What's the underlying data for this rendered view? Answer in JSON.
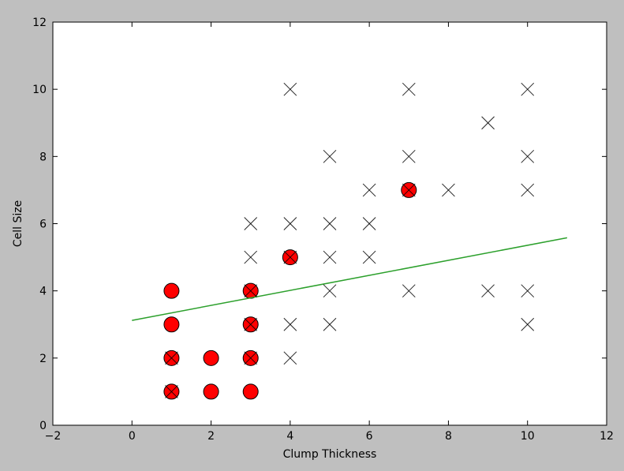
{
  "chart_data": {
    "type": "scatter",
    "title": "",
    "xlabel": "Clump Thickness",
    "ylabel": "Cell Size",
    "xlim": [
      -2,
      12
    ],
    "ylim": [
      0,
      12
    ],
    "xticks": [
      -2,
      0,
      2,
      4,
      6,
      8,
      10,
      12
    ],
    "yticks": [
      0,
      2,
      4,
      6,
      8,
      10,
      12
    ],
    "grid": false,
    "colors": {
      "figure_background": "#bfbfbf",
      "plot_background": "#ffffff",
      "benign_fill": "#ff0000",
      "malignant_marker": "#000000",
      "fit_line": "#2ca02c"
    },
    "series": [
      {
        "marker": "circle",
        "points": [
          [
            1,
            1
          ],
          [
            2,
            1
          ],
          [
            3,
            1
          ],
          [
            1,
            2
          ],
          [
            2,
            2
          ],
          [
            3,
            2
          ],
          [
            1,
            3
          ],
          [
            3,
            3
          ],
          [
            1,
            4
          ],
          [
            3,
            4
          ],
          [
            4,
            5
          ],
          [
            7,
            7
          ]
        ]
      },
      {
        "marker": "x",
        "points": [
          [
            1,
            1
          ],
          [
            1,
            2
          ],
          [
            3,
            2
          ],
          [
            4,
            2
          ],
          [
            3,
            3
          ],
          [
            4,
            3
          ],
          [
            5,
            3
          ],
          [
            10,
            3
          ],
          [
            3,
            4
          ],
          [
            5,
            4
          ],
          [
            7,
            4
          ],
          [
            9,
            4
          ],
          [
            10,
            4
          ],
          [
            3,
            5
          ],
          [
            4,
            5
          ],
          [
            5,
            5
          ],
          [
            6,
            5
          ],
          [
            3,
            6
          ],
          [
            4,
            6
          ],
          [
            5,
            6
          ],
          [
            6,
            6
          ],
          [
            6,
            7
          ],
          [
            7,
            7
          ],
          [
            8,
            7
          ],
          [
            10,
            7
          ],
          [
            5,
            8
          ],
          [
            7,
            8
          ],
          [
            10,
            8
          ],
          [
            9,
            9
          ],
          [
            4,
            10
          ],
          [
            7,
            10
          ],
          [
            10,
            10
          ]
        ]
      },
      {
        "marker": "line",
        "points": [
          [
            0,
            3.12
          ],
          [
            11,
            5.58
          ]
        ]
      }
    ]
  }
}
